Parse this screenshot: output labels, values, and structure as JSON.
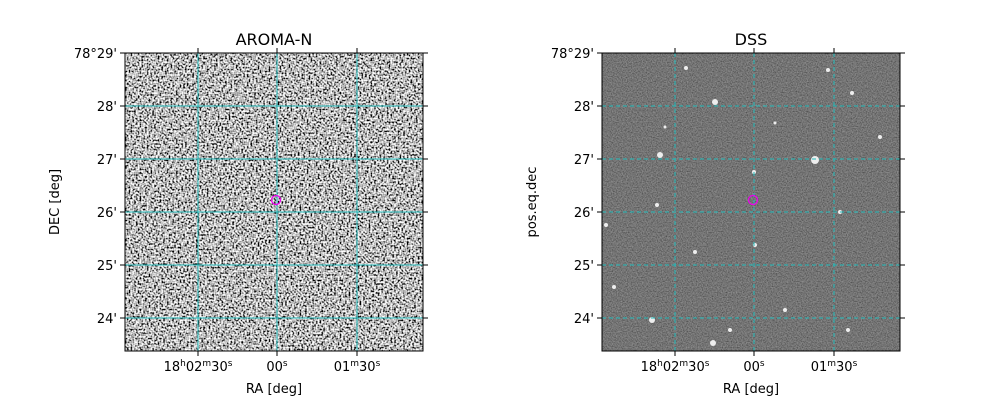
{
  "panels": [
    {
      "title": "AROMA-N",
      "xlabel": "RA [deg]",
      "ylabel": "DEC [deg]",
      "yticks": [
        "78°29'",
        "28'",
        "27'",
        "26'",
        "25'",
        "24'"
      ],
      "xticks": [
        "18h02m30s",
        "00s",
        "01m30s"
      ]
    },
    {
      "title": "DSS",
      "xlabel": "RA [deg]",
      "ylabel": "pos.eq.dec",
      "yticks": [
        "78°29'",
        "28'",
        "27'",
        "26'",
        "25'",
        "24'"
      ],
      "xticks": [
        "18h02m30s",
        "00s",
        "01m30s"
      ]
    }
  ]
}
